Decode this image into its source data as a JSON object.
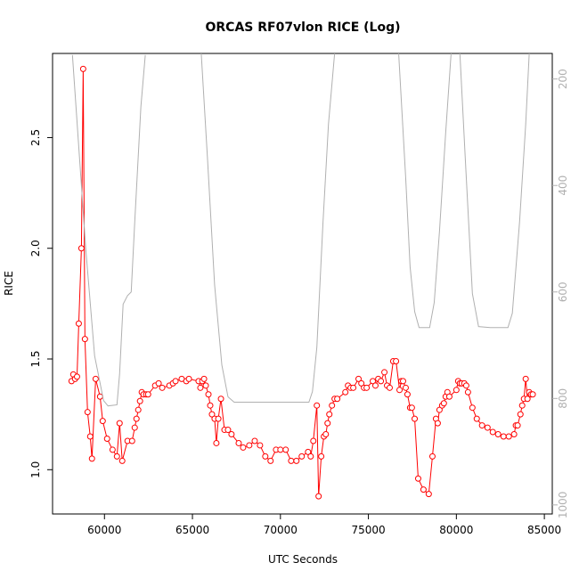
{
  "chart_data": {
    "type": "line",
    "title": "ORCAS RF07vlon RICE (Log)",
    "xlabel": "UTC Seconds",
    "ylabel": "RICE",
    "xlim": [
      57050,
      85450
    ],
    "xticks": [
      60000,
      65000,
      70000,
      75000,
      80000,
      85000
    ],
    "ylim": [
      0.8,
      2.88
    ],
    "yticks": [
      {
        "value": 1,
        "label": "1.0"
      },
      1.5,
      {
        "value": 2,
        "label": "2.0"
      },
      2.5
    ],
    "y2lim": [
      1017,
      152
    ],
    "y2ticks": [
      200,
      400,
      600,
      800,
      1000
    ],
    "series": [
      {
        "name": "RICE",
        "color": "#ff0000",
        "markers": true,
        "x": [
          58130,
          58230,
          58330,
          58440,
          58540,
          58690,
          58790,
          58890,
          59040,
          59190,
          59290,
          59500,
          59750,
          59900,
          60150,
          60460,
          60710,
          60860,
          61010,
          61310,
          61570,
          61720,
          61820,
          61920,
          62020,
          62120,
          62220,
          62370,
          62480,
          62880,
          63080,
          63280,
          63690,
          63890,
          64040,
          64390,
          64650,
          64800,
          65350,
          65450,
          65560,
          65660,
          65760,
          65910,
          66010,
          66110,
          66260,
          66360,
          66470,
          66620,
          66820,
          67020,
          67220,
          67630,
          67880,
          68230,
          68540,
          68840,
          69140,
          69440,
          69750,
          70000,
          70300,
          70610,
          70910,
          71210,
          71570,
          71720,
          71870,
          72070,
          72170,
          72320,
          72470,
          72580,
          72680,
          72780,
          72930,
          73080,
          73230,
          73690,
          73840,
          73990,
          74140,
          74440,
          74600,
          74750,
          74900,
          75250,
          75400,
          75560,
          75710,
          75910,
          76060,
          76210,
          76410,
          76570,
          76770,
          76870,
          76970,
          77120,
          77220,
          77370,
          77470,
          77630,
          77830,
          78130,
          78430,
          78640,
          78840,
          78940,
          79040,
          79190,
          79290,
          79390,
          79490,
          79600,
          80000,
          80100,
          80200,
          80300,
          80450,
          80560,
          80660,
          80910,
          81160,
          81460,
          81770,
          82070,
          82370,
          82680,
          82980,
          83280,
          83380,
          83480,
          83640,
          83740,
          83840,
          83940,
          84040,
          84140,
          84240,
          84340
        ],
        "values": [
          1.4,
          1.43,
          1.41,
          1.42,
          1.66,
          2.0,
          2.81,
          1.59,
          1.26,
          1.15,
          1.05,
          1.41,
          1.33,
          1.22,
          1.14,
          1.09,
          1.06,
          1.21,
          1.04,
          1.13,
          1.13,
          1.19,
          1.23,
          1.27,
          1.31,
          1.35,
          1.34,
          1.34,
          1.34,
          1.38,
          1.39,
          1.37,
          1.38,
          1.39,
          1.4,
          1.41,
          1.4,
          1.41,
          1.4,
          1.37,
          1.4,
          1.41,
          1.38,
          1.34,
          1.29,
          1.25,
          1.23,
          1.12,
          1.23,
          1.32,
          1.18,
          1.18,
          1.16,
          1.12,
          1.1,
          1.11,
          1.13,
          1.11,
          1.06,
          1.04,
          1.09,
          1.09,
          1.09,
          1.04,
          1.04,
          1.06,
          1.08,
          1.06,
          1.13,
          1.29,
          0.88,
          1.06,
          1.15,
          1.16,
          1.21,
          1.25,
          1.29,
          1.32,
          1.32,
          1.35,
          1.38,
          1.37,
          1.37,
          1.41,
          1.39,
          1.37,
          1.37,
          1.4,
          1.38,
          1.41,
          1.4,
          1.44,
          1.38,
          1.37,
          1.49,
          1.49,
          1.36,
          1.4,
          1.4,
          1.37,
          1.34,
          1.28,
          1.28,
          1.23,
          0.96,
          0.91,
          0.89,
          1.06,
          1.23,
          1.21,
          1.27,
          1.29,
          1.3,
          1.33,
          1.35,
          1.33,
          1.36,
          1.4,
          1.39,
          1.39,
          1.39,
          1.38,
          1.35,
          1.28,
          1.23,
          1.2,
          1.19,
          1.17,
          1.16,
          1.15,
          1.15,
          1.16,
          1.2,
          1.2,
          1.25,
          1.29,
          1.32,
          1.41,
          1.32,
          1.35,
          1.34,
          1.34
        ]
      },
      {
        "color": "#b0b0b0",
        "axis": "y2",
        "x": [
          58180,
          58940,
          59440,
          59950,
          60200,
          60710,
          60860,
          61060,
          61310,
          61520,
          61720,
          62070,
          62320,
          null,
          65500,
          65860,
          66260,
          66670,
          67020,
          67370,
          68280,
          69290,
          70300,
          71620,
          71820,
          72070,
          72420,
          72730,
          73080,
          null,
          76720,
          77120,
          77370,
          77630,
          77880,
          78480,
          78740,
          79040,
          79390,
          79700,
          null,
          80200,
          80510,
          80910,
          81260,
          81920,
          82930,
          83180,
          83590,
          83940,
          84140
        ],
        "values": [
          155,
          520,
          720,
          804,
          814,
          812,
          754,
          623,
          607,
          600,
          469,
          252,
          155,
          null,
          152,
          352,
          587,
          737,
          797,
          807,
          807,
          807,
          807,
          807,
          787,
          704,
          469,
          285,
          152,
          null,
          152,
          386,
          553,
          637,
          667,
          667,
          620,
          486,
          302,
          152,
          null,
          152,
          352,
          603,
          665,
          667,
          667,
          640,
          469,
          285,
          152
        ]
      }
    ]
  }
}
